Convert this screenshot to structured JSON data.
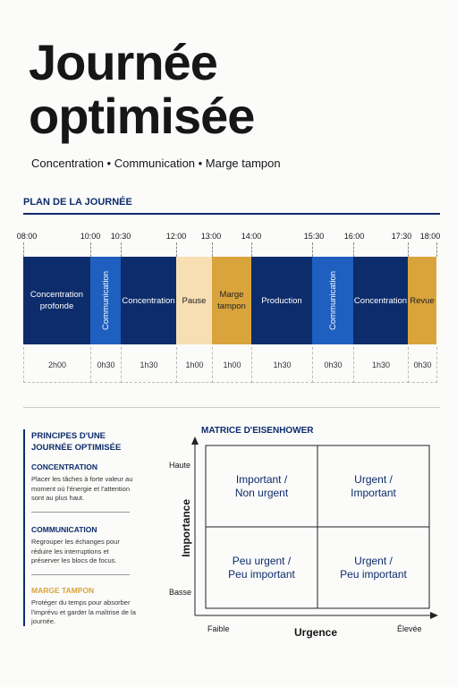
{
  "header": {
    "title_lines": [
      "Journée",
      "optimisée"
    ],
    "subtitle": "Concentration • Communication • Marge tampon"
  },
  "schedule": {
    "title": "PLAN DE LA JOURNÉE",
    "times": [
      "08:00",
      "10:00",
      "10:30",
      "12:00",
      "13:00",
      "14:00",
      "15:30",
      "16:00",
      "17:30",
      "18:00"
    ],
    "blocks": [
      {
        "label": "Concentration profonde",
        "duration": "2h00",
        "color": "#0d2c6b"
      },
      {
        "label": "Communication",
        "duration": "0h30",
        "color": "#1f5fbf",
        "vertical": true
      },
      {
        "label": "Concentration",
        "duration": "1h30",
        "color": "#0d2c6b"
      },
      {
        "label": "Pause",
        "duration": "1h00",
        "color": "#f7dfb3"
      },
      {
        "label": "Marge tampon",
        "duration": "1h00",
        "color": "#d9a43c"
      },
      {
        "label": "Production",
        "duration": "1h30",
        "color": "#0d2c6b"
      },
      {
        "label": "Communication",
        "duration": "0h30",
        "color": "#1f5fbf",
        "vertical": true
      },
      {
        "label": "Concentration",
        "duration": "1h30",
        "color": "#0d2c6b"
      },
      {
        "label": "Revue",
        "duration": "0h30",
        "color": "#d9a43c"
      }
    ]
  },
  "principles": {
    "title": "PRINCIPES D'UNE JOURNÉE OPTIMISÉE",
    "items": [
      {
        "name": "CONCENTRATION",
        "color": "#0d2c6b",
        "text": "Placer les tâches à forte valeur au moment où l'énergie et l'attention sont au plus haut."
      },
      {
        "name": "COMMUNICATION",
        "color": "#0d2c6b",
        "text": "Regrouper les échanges pour réduire les interruptions et préserver les blocs de focus."
      },
      {
        "name": "MARGE TAMPON",
        "color": "#d9a43c",
        "text": "Protéger du temps pour absorber l'imprévu et garder la maîtrise de la journée."
      }
    ]
  },
  "matrix": {
    "title": "MATRICE D'EISENHOWER",
    "y_label": "Importance",
    "y_high": "Haute",
    "y_low": "Basse",
    "x_label": "Urgence",
    "x_low": "Faible",
    "x_high": "Élevée",
    "quadrants": [
      [
        "Important /",
        "Non urgent"
      ],
      [
        "Urgent /",
        "Important"
      ],
      [
        "Peu urgent /",
        "Peu important"
      ],
      [
        "Urgent /",
        "Peu important"
      ]
    ]
  }
}
